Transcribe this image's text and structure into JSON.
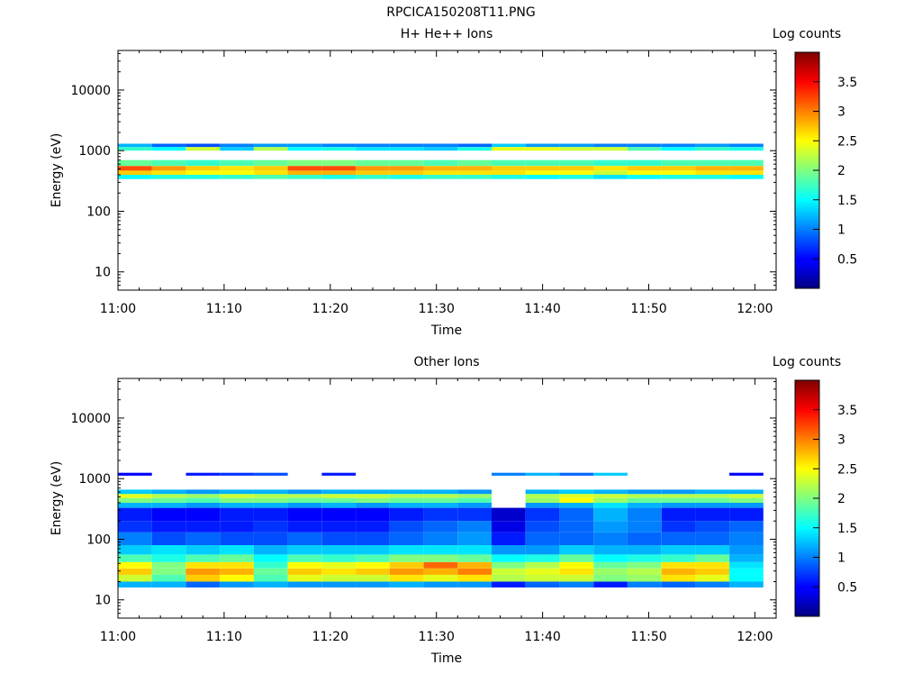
{
  "page": {
    "title": "RPCICA150208T11.PNG"
  },
  "chart_data": [
    {
      "type": "heatmap",
      "title": "H+ He++ Ions",
      "xlabel": "Time",
      "ylabel": "Energy (eV)",
      "x_ticks": [
        "11:00",
        "11:10",
        "11:20",
        "11:30",
        "11:40",
        "11:50",
        "12:00"
      ],
      "y_ticks": [
        "10",
        "100",
        "1000",
        "10000"
      ],
      "y_scale": "log",
      "ylim": [
        5,
        45000
      ],
      "xlim": [
        "11:00",
        "12:02"
      ],
      "colorbar": {
        "label": "Log counts",
        "ticks": [
          "0.5",
          "1",
          "1.5",
          "2",
          "2.5",
          "3",
          "3.5"
        ],
        "range": [
          0,
          4
        ]
      },
      "time_bins_min": [
        1.6,
        4.8,
        8.0,
        11.2,
        14.4,
        17.6,
        20.8,
        24.0,
        27.2,
        30.4,
        33.6,
        36.8,
        40.0,
        43.2,
        46.4,
        49.6,
        52.8,
        56.0,
        59.2
      ],
      "bands": [
        {
          "e_lo": 340,
          "e_hi": 400,
          "level": [
            1.5,
            1.6,
            1.6,
            1.7,
            1.8,
            1.7,
            1.6,
            1.7,
            1.6,
            1.7,
            1.7,
            1.6,
            1.5,
            1.6,
            1.4,
            1.5,
            1.6,
            1.6,
            1.5
          ]
        },
        {
          "e_lo": 400,
          "e_hi": 470,
          "level": [
            2.7,
            2.6,
            2.5,
            2.5,
            2.6,
            2.8,
            2.8,
            2.7,
            2.7,
            2.6,
            2.6,
            2.6,
            2.5,
            2.5,
            2.3,
            2.5,
            2.5,
            2.6,
            2.6
          ]
        },
        {
          "e_lo": 470,
          "e_hi": 560,
          "level": [
            3.2,
            2.9,
            2.7,
            2.6,
            2.7,
            3.2,
            3.2,
            2.9,
            2.9,
            2.8,
            2.8,
            2.7,
            2.7,
            2.7,
            2.6,
            2.7,
            2.7,
            2.8,
            2.8
          ]
        },
        {
          "e_lo": 560,
          "e_hi": 700,
          "level": [
            1.9,
            1.8,
            1.7,
            1.8,
            1.9,
            2.0,
            2.0,
            1.9,
            1.9,
            1.8,
            1.9,
            1.8,
            1.8,
            1.8,
            1.7,
            1.7,
            1.8,
            1.8,
            1.8
          ]
        },
        {
          "e_lo": 1000,
          "e_hi": 1150,
          "level": [
            1.7,
            1.5,
            2.3,
            1.3,
            2.2,
            1.5,
            1.6,
            1.4,
            1.4,
            1.3,
            1.6,
            2.4,
            2.4,
            2.3,
            2.3,
            1.8,
            1.5,
            1.7,
            1.6
          ]
        },
        {
          "e_lo": 1150,
          "e_hi": 1300,
          "level": [
            1.2,
            0.9,
            0.8,
            1.0,
            1.1,
            1.1,
            1.0,
            1.0,
            1.0,
            1.0,
            0.9,
            1.3,
            1.1,
            1.1,
            1.0,
            1.0,
            1.0,
            1.1,
            1.0
          ]
        }
      ]
    },
    {
      "type": "heatmap",
      "title": "Other Ions",
      "xlabel": "Time",
      "ylabel": "Energy (eV)",
      "x_ticks": [
        "11:00",
        "11:10",
        "11:20",
        "11:30",
        "11:40",
        "11:50",
        "12:00"
      ],
      "y_ticks": [
        "10",
        "100",
        "1000",
        "10000"
      ],
      "y_scale": "log",
      "ylim": [
        5,
        45000
      ],
      "xlim": [
        "11:00",
        "12:02"
      ],
      "colorbar": {
        "label": "Log counts",
        "ticks": [
          "0.5",
          "1",
          "1.5",
          "2",
          "2.5",
          "3",
          "3.5"
        ],
        "range": [
          0,
          4
        ]
      },
      "time_bins_min": [
        1.6,
        4.8,
        8.0,
        11.2,
        14.4,
        17.6,
        20.8,
        24.0,
        27.2,
        30.4,
        33.6,
        36.8,
        40.0,
        43.2,
        46.4,
        49.6,
        52.8,
        56.0,
        59.2
      ],
      "bands": [
        {
          "e_lo": 16,
          "e_hi": 20,
          "level": [
            1.2,
            1.2,
            0.9,
            1.1,
            1.2,
            1.1,
            1.1,
            1.1,
            1.2,
            1.1,
            1.1,
            0.6,
            0.9,
            1.0,
            0.6,
            1.0,
            0.9,
            1.0,
            1.2
          ]
        },
        {
          "e_lo": 20,
          "e_hi": 26,
          "level": [
            2.3,
            1.8,
            2.7,
            2.5,
            1.8,
            2.4,
            2.3,
            2.3,
            2.6,
            2.4,
            2.6,
            2.2,
            2.3,
            2.3,
            2.0,
            2.1,
            2.6,
            2.4,
            1.5
          ]
        },
        {
          "e_lo": 26,
          "e_hi": 33,
          "level": [
            2.7,
            2.0,
            2.9,
            2.8,
            1.9,
            2.7,
            2.6,
            2.7,
            2.9,
            2.8,
            3.0,
            2.3,
            2.4,
            2.6,
            2.1,
            2.2,
            2.8,
            2.7,
            1.5
          ]
        },
        {
          "e_lo": 33,
          "e_hi": 42,
          "level": [
            2.5,
            2.0,
            2.6,
            2.6,
            1.7,
            2.5,
            2.4,
            2.5,
            2.7,
            3.1,
            2.8,
            2.0,
            2.2,
            2.5,
            1.9,
            2.0,
            2.6,
            2.6,
            1.4
          ]
        },
        {
          "e_lo": 42,
          "e_hi": 56,
          "level": [
            1.8,
            1.6,
            1.8,
            1.9,
            1.5,
            1.8,
            1.7,
            1.8,
            2.0,
            2.0,
            1.9,
            1.5,
            1.6,
            1.9,
            1.5,
            1.6,
            1.7,
            1.9,
            1.2
          ]
        },
        {
          "e_lo": 56,
          "e_hi": 80,
          "level": [
            1.3,
            1.4,
            1.3,
            1.4,
            1.2,
            1.3,
            1.3,
            1.3,
            1.4,
            1.4,
            1.4,
            1.1,
            1.1,
            1.3,
            1.2,
            1.2,
            1.3,
            1.3,
            1.1
          ]
        },
        {
          "e_lo": 80,
          "e_hi": 130,
          "level": [
            1.0,
            0.8,
            0.9,
            0.8,
            0.8,
            0.9,
            0.8,
            0.8,
            0.9,
            1.0,
            1.1,
            0.6,
            0.9,
            0.9,
            1.0,
            0.9,
            0.9,
            0.9,
            1.0
          ]
        },
        {
          "e_lo": 130,
          "e_hi": 200,
          "level": [
            0.7,
            0.6,
            0.6,
            0.6,
            0.7,
            0.6,
            0.6,
            0.6,
            0.8,
            0.9,
            1.0,
            0.4,
            0.8,
            0.9,
            1.1,
            1.0,
            0.7,
            0.8,
            0.9
          ]
        },
        {
          "e_lo": 200,
          "e_hi": 330,
          "level": [
            0.6,
            0.5,
            0.5,
            0.6,
            0.6,
            0.5,
            0.5,
            0.5,
            0.6,
            0.7,
            0.7,
            0.3,
            0.7,
            0.9,
            1.2,
            1.0,
            0.6,
            0.6,
            0.6
          ]
        },
        {
          "e_lo": 330,
          "e_hi": 400,
          "level": [
            1.2,
            1.2,
            1.1,
            1.2,
            1.2,
            1.1,
            1.2,
            1.1,
            1.2,
            1.2,
            1.1,
            0.0,
            1.1,
            1.2,
            1.4,
            1.2,
            1.1,
            1.1,
            1.1
          ]
        },
        {
          "e_lo": 400,
          "e_hi": 480,
          "level": [
            2.0,
            1.9,
            1.8,
            2.0,
            2.0,
            1.9,
            1.9,
            2.0,
            1.9,
            1.9,
            1.8,
            0.0,
            2.1,
            2.5,
            2.1,
            1.9,
            1.9,
            1.9,
            2.0
          ]
        },
        {
          "e_lo": 480,
          "e_hi": 560,
          "level": [
            2.4,
            2.2,
            2.1,
            2.3,
            2.2,
            2.2,
            2.3,
            2.3,
            2.2,
            2.2,
            2.1,
            0.0,
            2.2,
            2.4,
            2.3,
            2.2,
            2.2,
            2.2,
            2.3
          ]
        },
        {
          "e_lo": 560,
          "e_hi": 660,
          "level": [
            1.3,
            1.2,
            1.1,
            1.2,
            1.2,
            1.1,
            1.2,
            1.2,
            1.2,
            1.2,
            1.1,
            0.0,
            1.2,
            1.3,
            1.2,
            1.1,
            1.1,
            1.2,
            1.2
          ]
        },
        {
          "e_lo": 1120,
          "e_hi": 1250,
          "level": [
            0.5,
            0.0,
            0.6,
            0.7,
            0.8,
            0.0,
            0.6,
            0.0,
            0.0,
            0.0,
            0.0,
            1.0,
            1.2,
            0.9,
            1.3,
            0.0,
            0.0,
            0.0,
            0.5
          ]
        }
      ]
    }
  ]
}
